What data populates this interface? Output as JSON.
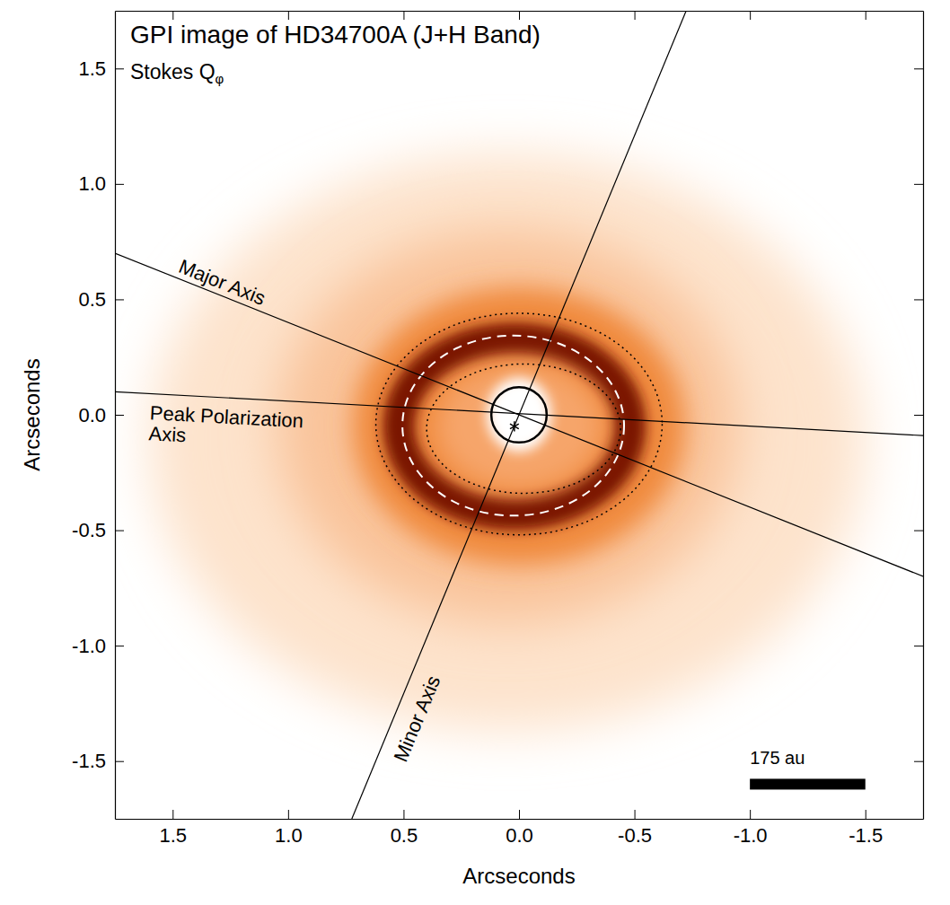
{
  "chart_data": {
    "type": "image",
    "title": "GPI image of HD34700A (J+H Band)",
    "subtitle": "Stokes Qφ",
    "x_label": "Arcseconds",
    "y_label": "Arcseconds",
    "xlim": [
      1.75,
      -1.75
    ],
    "ylim": [
      -1.75,
      1.75
    ],
    "xticks": [
      {
        "value": 1.5,
        "label": "1.5"
      },
      {
        "value": 1,
        "label": "1.0"
      },
      {
        "value": 0.5,
        "label": "0.5"
      },
      {
        "value": 0,
        "label": "0.0"
      },
      {
        "value": -0.5,
        "label": "-0.5"
      },
      {
        "value": -1,
        "label": "-1.0"
      },
      {
        "value": -1.5,
        "label": "-1.5"
      }
    ],
    "yticks": [
      {
        "value": -1.5,
        "label": "-1.5"
      },
      {
        "value": -1,
        "label": "-1.0"
      },
      {
        "value": -0.5,
        "label": "-0.5"
      },
      {
        "value": 0,
        "label": "0.0"
      },
      {
        "value": 0.5,
        "label": "0.5"
      },
      {
        "value": 1,
        "label": "1.0"
      },
      {
        "value": 1.5,
        "label": "1.5"
      }
    ],
    "emission": [
      {
        "center": [
          0.05,
          -0.12
        ],
        "rx": 1.55,
        "ry": 1.25,
        "color": "#fde3cc"
      },
      {
        "center": [
          0.05,
          -0.05
        ],
        "rx": 1.0,
        "ry": 0.85,
        "color": "#f9c39a"
      },
      {
        "center": [
          0.0,
          -0.05
        ],
        "rx": 0.72,
        "ry": 0.6,
        "color": "#f08a3e"
      },
      {
        "center": [
          0.02,
          -0.05
        ],
        "rx": 0.5,
        "ry": 0.38,
        "width": 0.14,
        "color": "#7a1500"
      },
      {
        "center": [
          0.0,
          -0.05
        ],
        "rx": 0.36,
        "ry": 0.27,
        "color": "#f6a56a"
      },
      {
        "center": [
          0.0,
          0.0
        ],
        "rx": 0.14,
        "ry": 0.16,
        "color": "#ffffff"
      }
    ],
    "ellipses": [
      {
        "center": [
          0.0,
          -0.04
        ],
        "rx": 0.62,
        "ry": 0.48,
        "line_style": "dotted",
        "color": "#000000"
      },
      {
        "center": [
          -0.02,
          -0.06
        ],
        "rx": 0.42,
        "ry": 0.28,
        "line_style": "dotted",
        "color": "#000000"
      },
      {
        "center": [
          0.025,
          -0.047
        ],
        "rx": 0.48,
        "ry": 0.39,
        "line_style": "dashed",
        "color": "#ffffff"
      }
    ],
    "lines": [
      {
        "label": [
          "Major Axis"
        ],
        "from": [
          1.75,
          0.7
        ],
        "to": [
          -1.75,
          -0.7
        ],
        "label_at": [
          1.48,
          0.62
        ],
        "color": "#000000"
      },
      {
        "label": [
          "Peak Polarization",
          "Axis"
        ],
        "from": [
          1.75,
          0.1
        ],
        "to": [
          -1.75,
          -0.09
        ],
        "label_at": [
          1.6,
          -0.02
        ],
        "color": "#000000"
      },
      {
        "label": [
          "Minor Axis"
        ],
        "from": [
          0.724,
          -1.75
        ],
        "to": [
          -0.724,
          1.75
        ],
        "label_at": [
          0.49,
          -1.51
        ],
        "color": "#000000"
      }
    ],
    "circle": {
      "center": [
        0.0,
        0.0
      ],
      "r": 0.12,
      "color": "#000000"
    },
    "star": {
      "at": [
        0.02,
        -0.05
      ],
      "marker": "asterisk",
      "color": "#000000"
    },
    "scale_bar": {
      "from": -1.0,
      "to": -1.5,
      "y": -1.6,
      "label": "175 au",
      "color": "#000000"
    }
  }
}
